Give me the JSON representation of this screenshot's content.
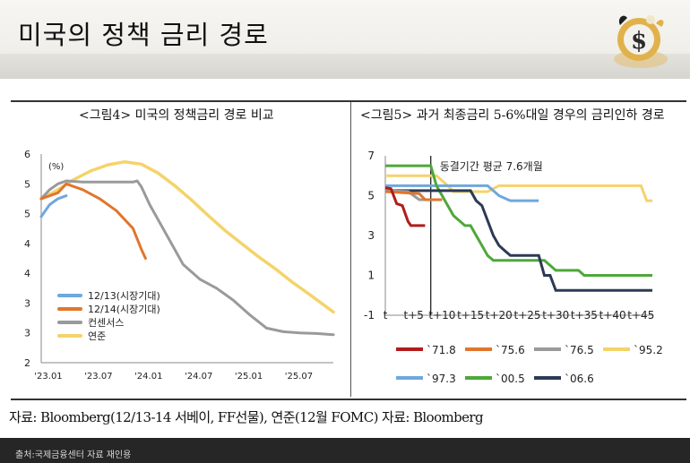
{
  "page": {
    "title": "미국의 정책 금리 경로",
    "source": "자료: Bloomberg(12/13-14 서베이, FF선물), 연준(12월 FOMC) 자료: Bloomberg",
    "footer": "출처:국제금융센터 자료 재인용"
  },
  "panels": {
    "left_title": "<그림4> 미국의 정책금리 경로 비교",
    "right_title": "<그림5> 과거 최종금리 5-6%대일 경우의 금리인하 경로"
  },
  "colors": {
    "blue": "#6fa8dc",
    "orange": "#e0762d",
    "gray": "#9a9a9a",
    "yellow": "#f4d36a",
    "dark_red": "#b01c1c",
    "green": "#4ea83a",
    "navy": "#2d3a55"
  },
  "chart_data": [
    {
      "type": "line",
      "title": "<그림4> 미국의 정책금리 경로 비교",
      "ylabel": "(%)",
      "x_tick_labels": [
        "'23.01",
        "'23.07",
        "'24.01",
        "'24.07",
        "'25.01",
        "'25.07"
      ],
      "x_ticks": [
        0,
        6,
        12,
        18,
        24,
        30
      ],
      "xlim": [
        0,
        35
      ],
      "y_tick_labels": [
        "6",
        "5",
        "5",
        "4",
        "4",
        "3",
        "3",
        "2"
      ],
      "y_ticks": [
        5.8,
        5.3,
        4.8,
        4.3,
        3.8,
        3.3,
        2.8,
        2.3
      ],
      "ylim": [
        2.3,
        5.8
      ],
      "legend_position": "lower-left",
      "series": [
        {
          "name": "12/13(시장기대)",
          "color": "#6fa8dc",
          "x": [
            0,
            1,
            2,
            3
          ],
          "y": [
            4.75,
            4.95,
            5.05,
            5.1
          ]
        },
        {
          "name": "12/14(시장기대)",
          "color": "#e0762d",
          "x": [
            0,
            2,
            3,
            5,
            7,
            9,
            11,
            12,
            12.5
          ],
          "y": [
            5.05,
            5.15,
            5.3,
            5.2,
            5.05,
            4.85,
            4.55,
            4.2,
            4.05
          ]
        },
        {
          "name": "컨센서스",
          "color": "#9a9a9a",
          "x": [
            0,
            1,
            2,
            3,
            5,
            7,
            9,
            11,
            11.5,
            12,
            13,
            15,
            17,
            19,
            21,
            23,
            25,
            27,
            29,
            31,
            33,
            35
          ],
          "y": [
            5.05,
            5.2,
            5.3,
            5.35,
            5.33,
            5.33,
            5.33,
            5.33,
            5.35,
            5.25,
            4.95,
            4.45,
            3.95,
            3.7,
            3.55,
            3.35,
            3.1,
            2.88,
            2.82,
            2.8,
            2.79,
            2.77
          ]
        },
        {
          "name": "연준",
          "color": "#f4d36a",
          "x": [
            0,
            2,
            4,
            6,
            8,
            10,
            12,
            14,
            16,
            18,
            20,
            22,
            24,
            26,
            28,
            30,
            32,
            35
          ],
          "y": [
            5.05,
            5.2,
            5.38,
            5.52,
            5.62,
            5.67,
            5.63,
            5.48,
            5.27,
            5.03,
            4.77,
            4.52,
            4.3,
            4.08,
            3.88,
            3.66,
            3.46,
            3.15
          ]
        }
      ]
    },
    {
      "type": "line",
      "title": "<그림5> 과거 최종금리 5-6%대일 경우의 금리인하 경로",
      "annotation": "동결기간 평균 7.6개월",
      "freeze_marker_x": 8,
      "x_tick_labels": [
        "t",
        "t+5",
        "t+10",
        "t+15",
        "t+20",
        "t+25",
        "t+30",
        "t+35",
        "t+40",
        "t+45"
      ],
      "x_ticks": [
        0,
        5,
        10,
        15,
        20,
        25,
        30,
        35,
        40,
        45
      ],
      "xlim": [
        0,
        47
      ],
      "y_tick_labels": [
        "7",
        "5",
        "3",
        "1",
        "-1"
      ],
      "y_ticks": [
        7,
        5,
        3,
        1,
        -1
      ],
      "ylim": [
        -1,
        7
      ],
      "legend_position": "bottom",
      "series": [
        {
          "name": "`71.8",
          "color": "#b01c1c",
          "x": [
            0,
            1,
            2,
            3,
            4,
            4.5,
            7
          ],
          "y": [
            5.4,
            5.35,
            4.6,
            4.5,
            3.7,
            3.5,
            3.5
          ]
        },
        {
          "name": "`75.6",
          "color": "#e0762d",
          "x": [
            0,
            6,
            7,
            8,
            9,
            10
          ],
          "y": [
            5.2,
            5.1,
            4.8,
            4.8,
            4.8,
            4.8
          ]
        },
        {
          "name": "`76.5",
          "color": "#9a9a9a",
          "x": [
            0,
            4,
            5,
            6,
            7
          ],
          "y": [
            5.25,
            5.2,
            5.0,
            4.8,
            4.8
          ]
        },
        {
          "name": "`95.2",
          "color": "#f4d36a",
          "x": [
            0,
            9,
            10,
            11,
            12,
            14,
            15,
            18,
            20,
            30,
            40,
            45,
            46,
            47
          ],
          "y": [
            6.0,
            6.0,
            5.75,
            5.5,
            5.2,
            5.2,
            5.2,
            5.2,
            5.5,
            5.5,
            5.5,
            5.5,
            4.75,
            4.75
          ]
        },
        {
          "name": "`97.3",
          "color": "#6fa8dc",
          "x": [
            0,
            18,
            19,
            20,
            22,
            24,
            27
          ],
          "y": [
            5.5,
            5.5,
            5.25,
            5.0,
            4.75,
            4.75,
            4.75
          ]
        },
        {
          "name": "`00.5",
          "color": "#4ea83a",
          "x": [
            0,
            8,
            8.5,
            9,
            10,
            11,
            12,
            13,
            14,
            15,
            16,
            17,
            18,
            19,
            20,
            27,
            28,
            30,
            34,
            35,
            46,
            47
          ],
          "y": [
            6.5,
            6.5,
            6.0,
            5.5,
            5.0,
            4.5,
            4.0,
            3.75,
            3.5,
            3.5,
            3.0,
            2.5,
            2.0,
            1.75,
            1.75,
            1.75,
            1.75,
            1.25,
            1.25,
            1.0,
            1.0,
            1.0
          ]
        },
        {
          "name": "`06.6",
          "color": "#2d3a55",
          "x": [
            0,
            15,
            16,
            17,
            19,
            20,
            21,
            22,
            23,
            27,
            28,
            29,
            30,
            31,
            47
          ],
          "y": [
            5.25,
            5.25,
            4.75,
            4.5,
            3.0,
            2.5,
            2.25,
            2.0,
            2.0,
            2.0,
            1.0,
            1.0,
            0.25,
            0.25,
            0.25
          ]
        }
      ]
    }
  ]
}
